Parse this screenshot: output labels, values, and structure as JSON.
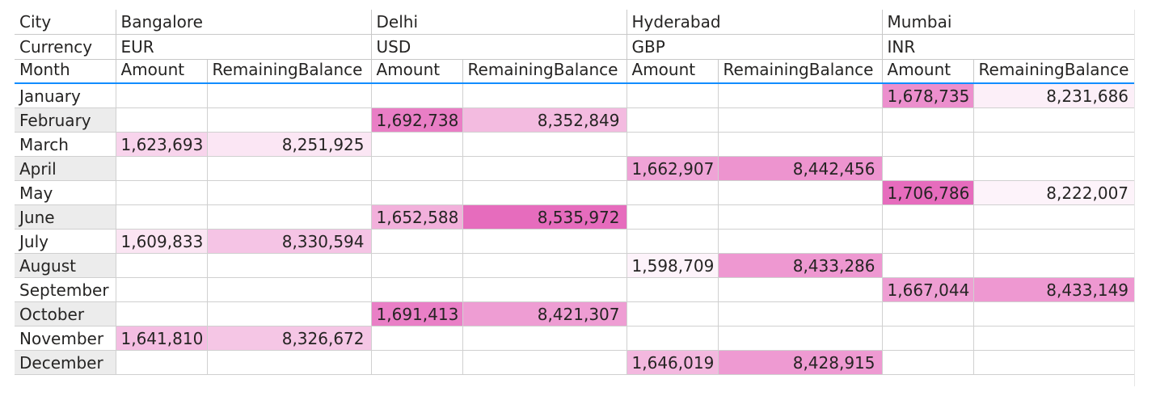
{
  "headers": {
    "city_label": "City",
    "currency_label": "Currency",
    "month_label": "Month",
    "amount_label": "Amount",
    "remaining_label": "RemainingBalance"
  },
  "cities": [
    {
      "name": "Bangalore",
      "currency": "EUR"
    },
    {
      "name": "Delhi",
      "currency": "USD"
    },
    {
      "name": "Hyderabad",
      "currency": "GBP"
    },
    {
      "name": "Mumbai",
      "currency": "INR"
    }
  ],
  "rows": [
    {
      "month": "January",
      "cells": [
        [
          "",
          ""
        ],
        [
          "",
          ""
        ],
        [
          "",
          ""
        ],
        [
          "1,678,735",
          "8,231,686"
        ]
      ]
    },
    {
      "month": "February",
      "cells": [
        [
          "",
          ""
        ],
        [
          "1,692,738",
          "8,352,849"
        ],
        [
          "",
          ""
        ],
        [
          "",
          ""
        ]
      ]
    },
    {
      "month": "March",
      "cells": [
        [
          "1,623,693",
          "8,251,925"
        ],
        [
          "",
          ""
        ],
        [
          "",
          ""
        ],
        [
          "",
          ""
        ]
      ]
    },
    {
      "month": "April",
      "cells": [
        [
          "",
          ""
        ],
        [
          "",
          ""
        ],
        [
          "1,662,907",
          "8,442,456"
        ],
        [
          "",
          ""
        ]
      ]
    },
    {
      "month": "May",
      "cells": [
        [
          "",
          ""
        ],
        [
          "",
          ""
        ],
        [
          "",
          ""
        ],
        [
          "1,706,786",
          "8,222,007"
        ]
      ]
    },
    {
      "month": "June",
      "cells": [
        [
          "",
          ""
        ],
        [
          "1,652,588",
          "8,535,972"
        ],
        [
          "",
          ""
        ],
        [
          "",
          ""
        ]
      ]
    },
    {
      "month": "July",
      "cells": [
        [
          "1,609,833",
          "8,330,594"
        ],
        [
          "",
          ""
        ],
        [
          "",
          ""
        ],
        [
          "",
          ""
        ]
      ]
    },
    {
      "month": "August",
      "cells": [
        [
          "",
          ""
        ],
        [
          "",
          ""
        ],
        [
          "1,598,709",
          "8,433,286"
        ],
        [
          "",
          ""
        ]
      ]
    },
    {
      "month": "September",
      "cells": [
        [
          "",
          ""
        ],
        [
          "",
          ""
        ],
        [
          "",
          ""
        ],
        [
          "1,667,044",
          "8,433,149"
        ]
      ]
    },
    {
      "month": "October",
      "cells": [
        [
          "",
          ""
        ],
        [
          "1,691,413",
          "8,421,307"
        ],
        [
          "",
          ""
        ],
        [
          "",
          ""
        ]
      ]
    },
    {
      "month": "November",
      "cells": [
        [
          "1,641,810",
          "8,326,672"
        ],
        [
          "",
          ""
        ],
        [
          "",
          ""
        ],
        [
          "",
          ""
        ]
      ]
    },
    {
      "month": "December",
      "cells": [
        [
          "",
          ""
        ],
        [
          "",
          ""
        ],
        [
          "1,646,019",
          "8,428,915"
        ],
        [
          "",
          ""
        ]
      ]
    }
  ],
  "colors": {
    "header_underline": "#118dff",
    "row_band": "#ececec",
    "heat_low": "#ffffff",
    "heat_high": "#e66cbd"
  }
}
